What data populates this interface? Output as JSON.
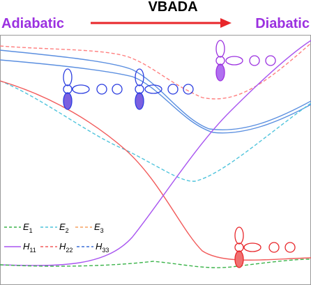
{
  "header": {
    "process": "VBADA",
    "left_label": "Adiabatic",
    "right_label": "Diabatic"
  },
  "legend": [
    {
      "symbol": "E",
      "subscript": "1"
    },
    {
      "symbol": "E",
      "subscript": "2"
    },
    {
      "symbol": "E",
      "subscript": "3"
    },
    {
      "symbol": "H",
      "subscript": "11"
    },
    {
      "symbol": "H",
      "subscript": "22"
    },
    {
      "symbol": "H",
      "subscript": "33"
    }
  ]
}
